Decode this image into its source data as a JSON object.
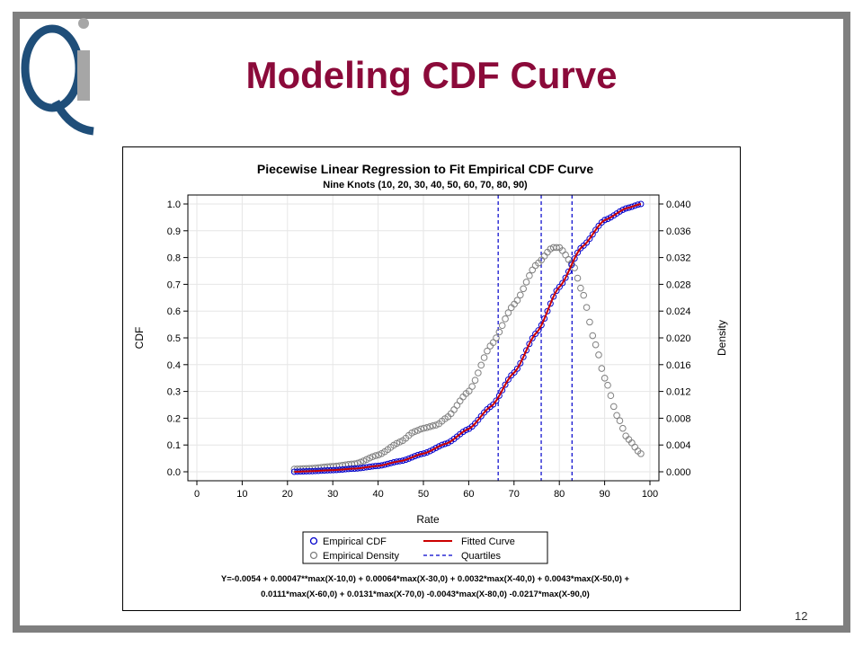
{
  "slide": {
    "title": "Modeling CDF Curve",
    "page_number": "12",
    "title_color": "#8b0a3a",
    "border_color": "#7f7f7f"
  },
  "logo": {
    "text": "QI",
    "colors": {
      "q": "#1f4e79",
      "i": "#a6a6a6"
    }
  },
  "chart_data": {
    "type": "scatter",
    "title": "Piecewise Linear Regression to Fit Empirical CDF Curve",
    "subtitle": "Nine Knots (10, 20, 30, 40, 50, 60, 70, 80, 90)",
    "xlabel": "Rate",
    "ylabel": "CDF",
    "y2label": "Density",
    "xlim": [
      0,
      100
    ],
    "ylim": [
      0,
      1
    ],
    "y2lim": [
      0,
      0.04
    ],
    "xticks": [
      0,
      10,
      20,
      30,
      40,
      50,
      60,
      70,
      80,
      90,
      100
    ],
    "yticks": [
      "0.0",
      "0.1",
      "0.2",
      "0.3",
      "0.4",
      "0.5",
      "0.6",
      "0.7",
      "0.8",
      "0.9",
      "1.0"
    ],
    "y2ticks": [
      "0.000",
      "0.004",
      "0.008",
      "0.012",
      "0.016",
      "0.020",
      "0.024",
      "0.028",
      "0.032",
      "0.036",
      "0.040"
    ],
    "grid": true,
    "legend_position": "bottom",
    "legend": [
      {
        "label": "Empirical CDF",
        "marker": "circle",
        "color": "#0000cc"
      },
      {
        "label": "Fitted Curve",
        "marker": "line",
        "color": "#cc0000"
      },
      {
        "label": "Empirical Density",
        "marker": "circle",
        "color": "#808080"
      },
      {
        "label": "Quartiles",
        "marker": "dashed-line",
        "color": "#0000cc"
      }
    ],
    "quartiles": [
      66.5,
      76,
      82.8
    ],
    "x_range_observed": [
      21.5,
      98
    ],
    "cdf_points": [
      [
        21.5,
        0.0
      ],
      [
        25,
        0.002
      ],
      [
        30,
        0.006
      ],
      [
        35,
        0.012
      ],
      [
        40,
        0.022
      ],
      [
        45,
        0.04
      ],
      [
        50,
        0.068
      ],
      [
        55,
        0.105
      ],
      [
        60,
        0.16
      ],
      [
        65,
        0.245
      ],
      [
        70,
        0.37
      ],
      [
        75,
        0.52
      ],
      [
        80,
        0.69
      ],
      [
        85,
        0.84
      ],
      [
        90,
        0.94
      ],
      [
        95,
        0.985
      ],
      [
        98,
        1.0
      ]
    ],
    "density_points": [
      [
        21.5,
        0.0004
      ],
      [
        25,
        0.0005
      ],
      [
        30,
        0.0008
      ],
      [
        35,
        0.0012
      ],
      [
        40,
        0.0025
      ],
      [
        45,
        0.0045
      ],
      [
        48,
        0.006
      ],
      [
        50,
        0.0065
      ],
      [
        53,
        0.007
      ],
      [
        55,
        0.008
      ],
      [
        60,
        0.012
      ],
      [
        65,
        0.019
      ],
      [
        70,
        0.025
      ],
      [
        75,
        0.031
      ],
      [
        78.5,
        0.0335
      ],
      [
        80,
        0.0335
      ],
      [
        83,
        0.031
      ],
      [
        85,
        0.027
      ],
      [
        88,
        0.019
      ],
      [
        90,
        0.014
      ],
      [
        93,
        0.008
      ],
      [
        95,
        0.005
      ],
      [
        98,
        0.0027
      ]
    ],
    "equation": [
      "Y=-0.0054 + 0.00047**max(X-10,0) + 0.00064*max(X-30,0) + 0.0032*max(X-40,0) + 0.0043*max(X-50,0) +",
      "0.0111*max(X-60,0) + 0.0131*max(X-70,0) -0.0043*max(X-80,0) -0.0217*max(X-90,0)"
    ]
  }
}
